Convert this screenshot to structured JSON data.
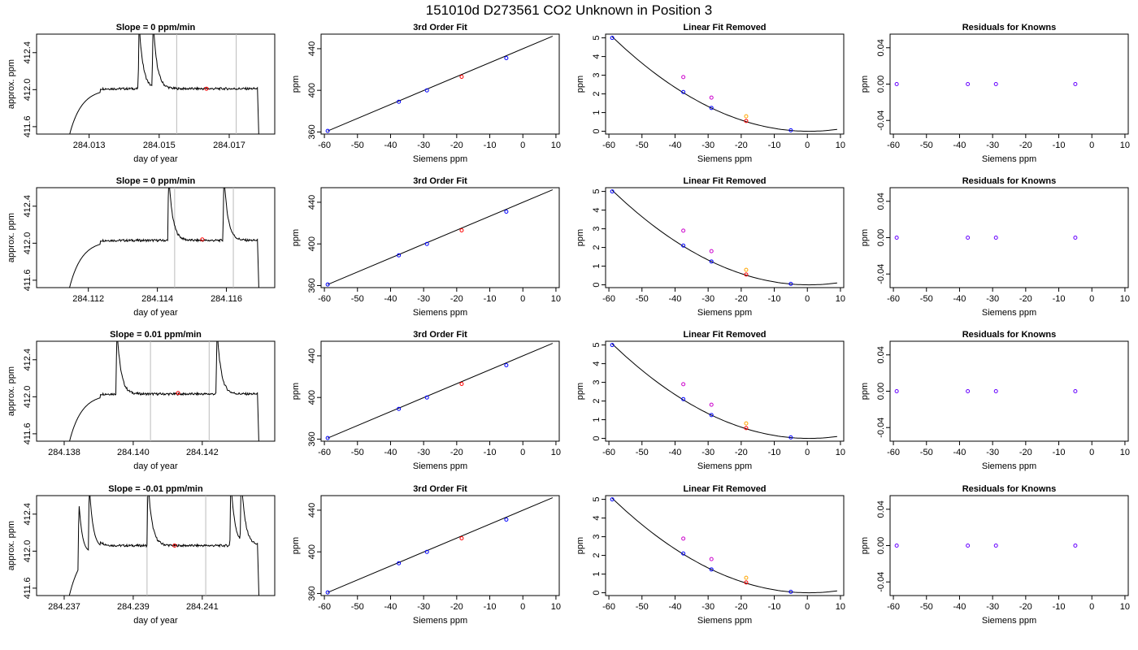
{
  "title": "151010d     D273561    CO2 Unknown in Position  3",
  "rows": [
    {
      "trace": {
        "title": "Slope =  0  ppm/min",
        "xlabel": "day of year",
        "ylabel": "approx. ppm",
        "xlim": [
          284.0115,
          284.0183
        ],
        "ylim": [
          411.52,
          412.6
        ],
        "xticks": [
          "284.013",
          "284.015",
          "284.017"
        ],
        "xtick_values": [
          284.013,
          284.015,
          284.017
        ],
        "yticks": [
          "411.6",
          "412.0",
          "412.4"
        ],
        "ytick_values": [
          411.6,
          412.0,
          412.4
        ],
        "vlines": [
          284.0155,
          284.0172
        ],
        "marker": [
          284.01635,
          412.01
        ],
        "plateau": 412.01,
        "spikes": [
          284.0144,
          284.0148,
          284.0179
        ]
      }
    },
    {
      "trace": {
        "title": "Slope =  0  ppm/min",
        "xlabel": "day of year",
        "ylabel": "approx. ppm",
        "xlim": [
          284.1105,
          284.1174
        ],
        "ylim": [
          411.52,
          412.6
        ],
        "xticks": [
          "284.112",
          "284.114",
          "284.116"
        ],
        "xtick_values": [
          284.112,
          284.114,
          284.116
        ],
        "yticks": [
          "411.6",
          "412.0",
          "412.4"
        ],
        "ytick_values": [
          411.6,
          412.0,
          412.4
        ],
        "vlines": [
          284.1145,
          284.1162
        ],
        "marker": [
          284.1153,
          412.04
        ],
        "plateau": 412.03,
        "spikes": [
          284.1143,
          284.1159
        ]
      }
    },
    {
      "trace": {
        "title": "Slope =  0.01  ppm/min",
        "xlabel": "day of year",
        "ylabel": "approx. ppm",
        "xlim": [
          284.1372,
          284.1441
        ],
        "ylim": [
          411.52,
          412.6
        ],
        "xticks": [
          "284.138",
          "284.140",
          "284.142"
        ],
        "xtick_values": [
          284.138,
          284.14,
          284.142
        ],
        "yticks": [
          "411.6",
          "412.0",
          "412.4"
        ],
        "ytick_values": [
          411.6,
          412.0,
          412.4
        ],
        "vlines": [
          284.1405,
          284.1422
        ],
        "marker": [
          284.1413,
          412.04
        ],
        "plateau": 412.03,
        "spikes": [
          284.1395,
          284.1424
        ]
      }
    },
    {
      "trace": {
        "title": "Slope =  -0.01  ppm/min",
        "xlabel": "day of year",
        "ylabel": "approx. ppm",
        "xlim": [
          284.2362,
          284.2431
        ],
        "ylim": [
          411.52,
          412.6
        ],
        "xticks": [
          "284.237",
          "284.239",
          "284.241"
        ],
        "xtick_values": [
          284.237,
          284.239,
          284.241
        ],
        "yticks": [
          "411.6",
          "412.0",
          "412.4"
        ],
        "ytick_values": [
          411.6,
          412.0,
          412.4
        ],
        "vlines": [
          284.2394,
          284.2411
        ],
        "marker": [
          284.2402,
          412.06
        ],
        "plateau": 412.06,
        "spikes": [
          284.2374,
          284.2377,
          284.2394,
          284.2418,
          284.2421
        ]
      }
    }
  ],
  "fit": {
    "title": "3rd Order Fit",
    "xlabel": "Siemens ppm",
    "ylabel": "ppm",
    "xlim": [
      -61,
      11
    ],
    "ylim": [
      358,
      454
    ],
    "xticks": [
      "-60",
      "-50",
      "-40",
      "-30",
      "-20",
      "-10",
      "0",
      "10"
    ],
    "xtick_values": [
      -60,
      -50,
      -40,
      -30,
      -20,
      -10,
      0,
      10
    ],
    "yticks": [
      "360",
      "400",
      "440"
    ],
    "ytick_values": [
      360,
      400,
      440
    ],
    "line": [
      [
        -59,
        361
      ],
      [
        9,
        452
      ]
    ],
    "knowns": [
      [
        -59,
        361
      ],
      [
        -37.5,
        389
      ],
      [
        -29,
        400
      ],
      [
        -5,
        431
      ]
    ],
    "unknown": [
      -18.5,
      413
    ],
    "known_color": "#0000ff",
    "unknown_color": "#ff0000"
  },
  "linear": {
    "title": "Linear Fit Removed",
    "xlabel": "Siemens ppm",
    "ylabel": "ppm",
    "xlim": [
      -61,
      11
    ],
    "ylim": [
      -0.15,
      5.2
    ],
    "xticks": [
      "-60",
      "-50",
      "-40",
      "-30",
      "-20",
      "-10",
      "0",
      "10"
    ],
    "xtick_values": [
      -60,
      -50,
      -40,
      -30,
      -20,
      -10,
      0,
      10
    ],
    "yticks": [
      "0",
      "1",
      "2",
      "3",
      "4",
      "5"
    ],
    "ytick_values": [
      0,
      1,
      2,
      3,
      4,
      5
    ],
    "curve": {
      "a": 0.00143,
      "vertex": 0.5,
      "x_from": -59,
      "x_to": 9
    },
    "knowns": [
      [
        -59,
        5.0
      ],
      [
        -37.5,
        2.1
      ],
      [
        -29,
        1.25
      ],
      [
        -5,
        0.05
      ]
    ],
    "magenta": [
      [
        -37.5,
        2.9
      ],
      [
        -29,
        1.8
      ]
    ],
    "orange": [
      [
        -18.5,
        0.8
      ]
    ],
    "red": [
      [
        -18.5,
        0.55
      ]
    ],
    "magenta_color": "#cc00cc",
    "orange_color": "#ffa500"
  },
  "resid": {
    "title": "Residuals for Knowns",
    "xlabel": "Siemens ppm",
    "ylabel": "ppm",
    "xlim": [
      -61,
      11
    ],
    "ylim": [
      -0.055,
      0.055
    ],
    "xticks": [
      "-60",
      "-50",
      "-40",
      "-30",
      "-20",
      "-10",
      "0",
      "10"
    ],
    "xtick_values": [
      -60,
      -50,
      -40,
      -30,
      -20,
      -10,
      0,
      10
    ],
    "yticks": [
      "-0.04",
      "0.00",
      "0.04"
    ],
    "ytick_values": [
      -0.04,
      0.0,
      0.04
    ],
    "points": [
      [
        -59,
        0
      ],
      [
        -37.5,
        0
      ],
      [
        -29,
        0
      ],
      [
        -5,
        0
      ]
    ],
    "color": "#6600ff"
  }
}
